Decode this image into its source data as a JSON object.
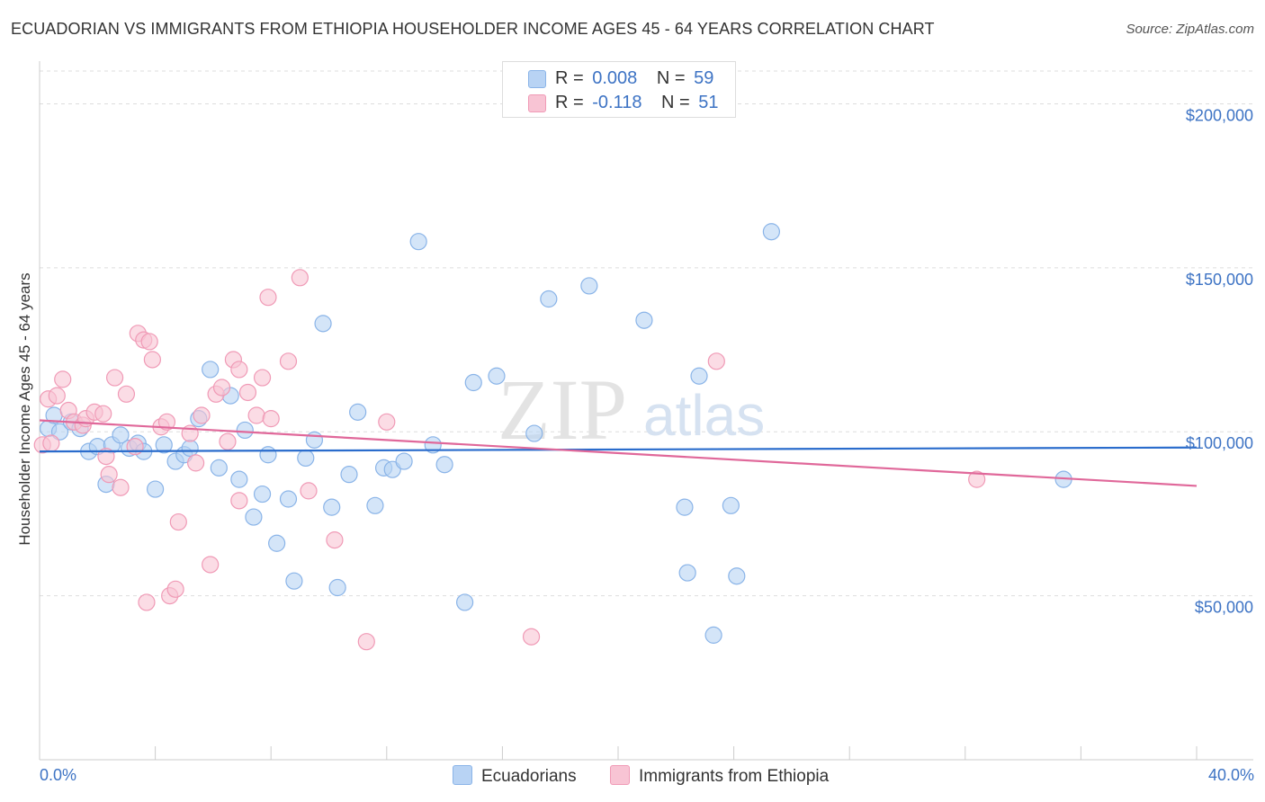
{
  "title": "ECUADORIAN VS IMMIGRANTS FROM ETHIOPIA HOUSEHOLDER INCOME AGES 45 - 64 YEARS CORRELATION CHART",
  "source": "Source: ZipAtlas.com",
  "watermark": {
    "zip": "ZIP",
    "atlas": "atlas"
  },
  "legend": {
    "rows": [
      {
        "r_label": "R =",
        "r_value": "0.008",
        "n_label": "N =",
        "n_value": "59"
      },
      {
        "r_label": "R =",
        "r_value": "-0.118",
        "n_label": "N =",
        "n_value": "51"
      }
    ]
  },
  "colors": {
    "blue_fill": "#b8d3f4",
    "blue_stroke": "#8ab4e8",
    "blue_line": "#2a6ccc",
    "pink_fill": "#f8c4d4",
    "pink_stroke": "#f09ab6",
    "pink_line": "#e0689a",
    "grid": "#dddddd",
    "axis_text": "#3d73c4"
  },
  "chart_data": {
    "type": "scatter",
    "title": "ECUADORIAN VS IMMIGRANTS FROM ETHIOPIA HOUSEHOLDER INCOME AGES 45 - 64 YEARS CORRELATION CHART",
    "xlabel": "",
    "ylabel": "Householder Income Ages 45 - 64 years",
    "xlim": [
      0,
      40
    ],
    "ylim": [
      0,
      210000
    ],
    "x_tick_labels": [
      "0.0%",
      "40.0%"
    ],
    "y_ticks": [
      50000,
      100000,
      150000,
      200000
    ],
    "y_tick_labels": [
      "$50,000",
      "$100,000",
      "$150,000",
      "$200,000"
    ],
    "grid": true,
    "legend_position": "bottom",
    "series": [
      {
        "name": "Ecuadorians",
        "color": "#b8d3f4",
        "r": 0.008,
        "n": 59,
        "trend": {
          "x": [
            0,
            40
          ],
          "y": [
            94000,
            95200
          ]
        },
        "points": [
          [
            0.3,
            101000
          ],
          [
            0.5,
            105000
          ],
          [
            0.7,
            100000
          ],
          [
            1.1,
            103000
          ],
          [
            1.4,
            101000
          ],
          [
            1.7,
            94000
          ],
          [
            2.0,
            95500
          ],
          [
            2.3,
            84000
          ],
          [
            2.5,
            96000
          ],
          [
            2.8,
            99000
          ],
          [
            3.1,
            95000
          ],
          [
            3.4,
            96500
          ],
          [
            3.6,
            94000
          ],
          [
            4.0,
            82500
          ],
          [
            4.3,
            96000
          ],
          [
            4.7,
            91000
          ],
          [
            5.0,
            93000
          ],
          [
            5.2,
            95000
          ],
          [
            5.5,
            104000
          ],
          [
            5.9,
            119000
          ],
          [
            6.2,
            89000
          ],
          [
            6.6,
            111000
          ],
          [
            6.9,
            85500
          ],
          [
            7.1,
            100500
          ],
          [
            7.4,
            74000
          ],
          [
            7.7,
            81000
          ],
          [
            7.9,
            93000
          ],
          [
            8.2,
            66000
          ],
          [
            8.6,
            79500
          ],
          [
            8.8,
            54500
          ],
          [
            9.2,
            92000
          ],
          [
            9.5,
            97500
          ],
          [
            9.8,
            133000
          ],
          [
            10.1,
            77000
          ],
          [
            10.3,
            52500
          ],
          [
            10.7,
            87000
          ],
          [
            11.0,
            106000
          ],
          [
            11.6,
            77500
          ],
          [
            11.9,
            89000
          ],
          [
            12.2,
            88500
          ],
          [
            12.6,
            91000
          ],
          [
            13.1,
            158000
          ],
          [
            13.6,
            96000
          ],
          [
            14.0,
            90000
          ],
          [
            14.7,
            48000
          ],
          [
            15.0,
            115000
          ],
          [
            15.8,
            117000
          ],
          [
            17.1,
            99500
          ],
          [
            17.6,
            140500
          ],
          [
            19.0,
            144500
          ],
          [
            20.9,
            134000
          ],
          [
            22.3,
            77000
          ],
          [
            22.4,
            57000
          ],
          [
            22.8,
            117000
          ],
          [
            23.3,
            38000
          ],
          [
            23.9,
            77500
          ],
          [
            24.1,
            56000
          ],
          [
            25.3,
            161000
          ],
          [
            35.4,
            85500
          ]
        ]
      },
      {
        "name": "Immigrants from Ethiopia",
        "color": "#f8c4d4",
        "r": -0.118,
        "n": 51,
        "trend": {
          "x": [
            0,
            40
          ],
          "y": [
            103500,
            83500
          ]
        },
        "points": [
          [
            0.1,
            96000
          ],
          [
            0.3,
            110000
          ],
          [
            0.4,
            96500
          ],
          [
            0.6,
            111000
          ],
          [
            0.8,
            116000
          ],
          [
            1.0,
            106500
          ],
          [
            1.2,
            103000
          ],
          [
            1.5,
            102000
          ],
          [
            1.6,
            104000
          ],
          [
            1.9,
            106000
          ],
          [
            2.2,
            105500
          ],
          [
            2.3,
            92500
          ],
          [
            2.4,
            87000
          ],
          [
            2.6,
            116500
          ],
          [
            2.8,
            83000
          ],
          [
            3.0,
            111500
          ],
          [
            3.3,
            95500
          ],
          [
            3.4,
            130000
          ],
          [
            3.6,
            128000
          ],
          [
            3.8,
            127500
          ],
          [
            3.7,
            48000
          ],
          [
            3.9,
            122000
          ],
          [
            4.2,
            101500
          ],
          [
            4.4,
            103000
          ],
          [
            4.5,
            50000
          ],
          [
            4.7,
            52000
          ],
          [
            4.8,
            72500
          ],
          [
            5.2,
            99500
          ],
          [
            5.4,
            90500
          ],
          [
            5.6,
            105000
          ],
          [
            5.9,
            59500
          ],
          [
            6.1,
            111500
          ],
          [
            6.3,
            113500
          ],
          [
            6.5,
            97000
          ],
          [
            6.7,
            122000
          ],
          [
            6.9,
            119000
          ],
          [
            6.9,
            79000
          ],
          [
            7.2,
            112000
          ],
          [
            7.5,
            105000
          ],
          [
            7.7,
            116500
          ],
          [
            7.9,
            141000
          ],
          [
            8.0,
            104000
          ],
          [
            8.6,
            121500
          ],
          [
            9.0,
            147000
          ],
          [
            9.3,
            82000
          ],
          [
            10.2,
            67000
          ],
          [
            11.3,
            36000
          ],
          [
            12.0,
            103000
          ],
          [
            17.0,
            37500
          ],
          [
            23.4,
            121500
          ],
          [
            32.4,
            85500
          ]
        ]
      }
    ]
  },
  "bottom_legend": {
    "series1": "Ecuadorians",
    "series2": "Immigrants from Ethiopia"
  },
  "x_axis": {
    "left": "0.0%",
    "right": "40.0%"
  }
}
